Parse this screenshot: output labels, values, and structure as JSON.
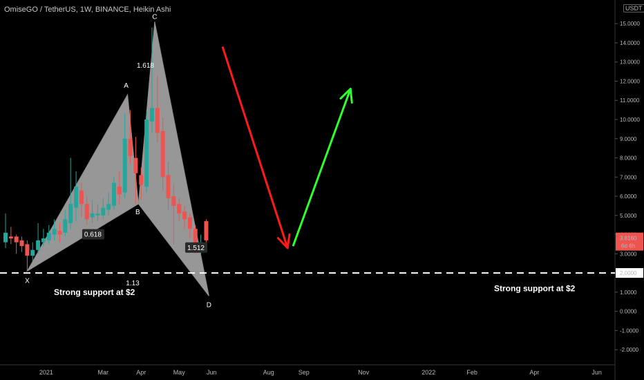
{
  "header": {
    "symbol_line": "OmiseGO / TetherUS, 1W, BINANCE, Heikin Ashi",
    "currency": "USDT"
  },
  "chart_data": {
    "type": "candlestick",
    "ylim": [
      -2.5,
      15.8
    ],
    "yticks": [
      "-2.0000",
      "-1.0000",
      "0.0000",
      "1.0000",
      "2.0000",
      "3.0000",
      "4.0000",
      "5.0000",
      "6.0000",
      "7.0000",
      "8.0000",
      "9.0000",
      "10.0000",
      "11.0000",
      "12.0000",
      "13.0000",
      "14.0000",
      "15.0000",
      "16.0000"
    ],
    "ytick_values": [
      -2,
      -1,
      0,
      1,
      2,
      3,
      4,
      5,
      6,
      7,
      8,
      9,
      10,
      11,
      12,
      13,
      14,
      15,
      16
    ],
    "xticks": [
      "2021",
      "Mar",
      "Apr",
      "May",
      "Jun",
      "Aug",
      "Sep",
      "Nov",
      "2022",
      "Feb",
      "Apr",
      "Jun"
    ],
    "last_price": "3.8160",
    "countdown": "6d 6h",
    "support_level": {
      "value": "2.0000",
      "y": 2.0
    },
    "candles": [
      {
        "o": 3.6,
        "c": 4.1,
        "h": 5.1,
        "l": 3.3
      },
      {
        "o": 3.9,
        "c": 3.8,
        "h": 4.4,
        "l": 3.5
      },
      {
        "o": 3.9,
        "c": 3.6,
        "h": 4.0,
        "l": 3.0
      },
      {
        "o": 3.7,
        "c": 3.4,
        "h": 3.9,
        "l": 3.1
      },
      {
        "o": 3.5,
        "c": 2.9,
        "h": 3.7,
        "l": 2.1
      },
      {
        "o": 2.9,
        "c": 3.2,
        "h": 3.6,
        "l": 2.6
      },
      {
        "o": 3.2,
        "c": 3.7,
        "h": 4.6,
        "l": 3.0
      },
      {
        "o": 3.6,
        "c": 3.8,
        "h": 4.3,
        "l": 3.4
      },
      {
        "o": 3.7,
        "c": 4.1,
        "h": 4.5,
        "l": 3.5
      },
      {
        "o": 4.0,
        "c": 4.3,
        "h": 4.8,
        "l": 3.7
      },
      {
        "o": 4.2,
        "c": 4.0,
        "h": 4.6,
        "l": 3.6
      },
      {
        "o": 4.1,
        "c": 4.8,
        "h": 5.3,
        "l": 3.9
      },
      {
        "o": 4.6,
        "c": 5.6,
        "h": 8.0,
        "l": 4.3
      },
      {
        "o": 5.4,
        "c": 6.5,
        "h": 7.3,
        "l": 4.7
      },
      {
        "o": 6.3,
        "c": 5.6,
        "h": 6.7,
        "l": 4.9
      },
      {
        "o": 5.6,
        "c": 4.8,
        "h": 6.0,
        "l": 4.5
      },
      {
        "o": 4.9,
        "c": 5.1,
        "h": 5.8,
        "l": 4.6
      },
      {
        "o": 5.0,
        "c": 5.1,
        "h": 5.6,
        "l": 4.7
      },
      {
        "o": 5.0,
        "c": 5.4,
        "h": 5.9,
        "l": 4.8
      },
      {
        "o": 5.3,
        "c": 5.6,
        "h": 6.2,
        "l": 5.0
      },
      {
        "o": 5.5,
        "c": 6.7,
        "h": 7.0,
        "l": 5.3
      },
      {
        "o": 6.5,
        "c": 6.1,
        "h": 7.3,
        "l": 5.6
      },
      {
        "o": 6.2,
        "c": 9.0,
        "h": 10.3,
        "l": 5.9
      },
      {
        "o": 9.0,
        "c": 8.1,
        "h": 10.5,
        "l": 7.7
      },
      {
        "o": 8.0,
        "c": 7.2,
        "h": 9.1,
        "l": 5.6
      },
      {
        "o": 7.1,
        "c": 6.6,
        "h": 7.5,
        "l": 5.8
      },
      {
        "o": 6.5,
        "c": 10.0,
        "h": 10.5,
        "l": 6.2
      },
      {
        "o": 9.9,
        "c": 10.6,
        "h": 14.8,
        "l": 9.3
      },
      {
        "o": 10.6,
        "c": 9.3,
        "h": 12.3,
        "l": 8.8
      },
      {
        "o": 9.4,
        "c": 7.0,
        "h": 10.1,
        "l": 6.3
      },
      {
        "o": 7.1,
        "c": 5.9,
        "h": 7.8,
        "l": 5.3
      },
      {
        "o": 6.0,
        "c": 5.5,
        "h": 6.6,
        "l": 3.5
      },
      {
        "o": 5.6,
        "c": 5.1,
        "h": 5.9,
        "l": 4.7
      },
      {
        "o": 5.2,
        "c": 4.8,
        "h": 5.5,
        "l": 4.3
      },
      {
        "o": 4.9,
        "c": 4.3,
        "h": 5.1,
        "l": 3.8
      },
      {
        "o": 4.3,
        "c": 3.3,
        "h": 4.5,
        "l": 3.0
      },
      {
        "o": 3.2,
        "c": 3.6,
        "h": 4.0,
        "l": 3.0
      },
      {
        "o": 4.7,
        "c": 3.7,
        "h": 4.8,
        "l": 3.5
      }
    ],
    "pattern": {
      "X": {
        "i": 4,
        "y": 2.1
      },
      "A": {
        "i": 22.5,
        "y": 11.3
      },
      "B": {
        "i": 24.5,
        "y": 5.6
      },
      "C": {
        "i": 27.5,
        "y": 15.1
      },
      "D": {
        "i": 37.5,
        "y": 0.8
      },
      "ratio_pt": {
        "i": 14,
        "y": 4.0
      }
    },
    "point_labels": [
      "X",
      "A",
      "B",
      "C",
      "D"
    ],
    "ratio_labels": [
      "0.618",
      "1.618",
      "1.512",
      "1.13"
    ],
    "annotations": [
      "Strong support at $2",
      "Strong support at $2"
    ],
    "arrows": [
      {
        "color": "#ff1a1a",
        "from": {
          "w": 40,
          "y": 13.8
        },
        "to": {
          "w": 52,
          "y": 3.3
        }
      },
      {
        "color": "#2dff2d",
        "from": {
          "w": 53,
          "y": 3.4
        },
        "to": {
          "w": 63.6,
          "y": 11.6
        }
      }
    ],
    "colors": {
      "up": "#26a69a",
      "down": "#ef5350",
      "pattern": "#b8b8b8",
      "support": "#ffffff",
      "price_tag": "#ef5350"
    }
  }
}
